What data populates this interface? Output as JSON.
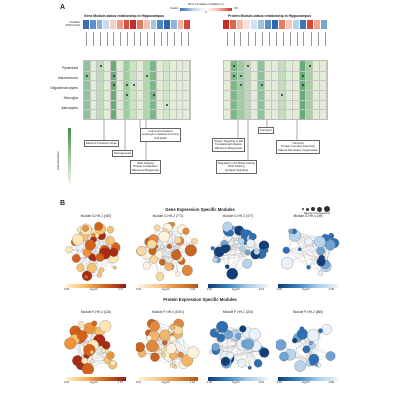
{
  "panel_a": {
    "letter": "A",
    "bicor_title": "Bicor Correlation Coefficient (r)",
    "bicor_min": "Control",
    "bicor_mid": "0",
    "bicor_max": "DS",
    "condition_label": "Condition (DS/Control)",
    "gene_title": "Gene Module-status relationship in Hippocampus",
    "protein_title": "Protein Module-status relationship in Hippocampus",
    "cell_types": [
      "Pyramidal",
      "Interneurons",
      "Oligodendrocytes",
      "Microglia",
      "Astrocytes"
    ],
    "y_axis_label": "Fold enrichment",
    "annotations": [
      {
        "lines": [
          "Electron Transport Chain"
        ]
      },
      {
        "lines": [
          "Neurogenesis"
        ]
      },
      {
        "lines": [
          "Cell communication",
          "Leukocyte mediated immunity",
          "Cell death"
        ]
      },
      {
        "lines": [
          "RNA Splicing",
          "Protein Localization",
          "Ribosome Biogenesis"
        ]
      },
      {
        "lines": [
          "Protein Targeting to ER",
          "Translational Initiation",
          "Ribosome Biogenesis"
        ]
      },
      {
        "lines": [
          "Regulation of GTPase Activity",
          "RNA Splicing",
          "Synaptic Signaling"
        ]
      },
      {
        "lines": [
          "Transport"
        ]
      },
      {
        "lines": [
          "Transport",
          "Protein Complex Assembly",
          "Plasma Membrane Organization"
        ]
      }
    ]
  },
  "panel_b": {
    "letter": "B",
    "gene_title": "Gene Expression Specific Modules",
    "protein_title": "Protein Expression Specific Modules",
    "degree_label": "Degree of connections",
    "axis_label": "log₂FC",
    "gene_modules": [
      {
        "name": "Module G-HH-1 (467)",
        "min": "0.66",
        "max": "3.72"
      },
      {
        "name": "Module G-HH-2 (771)",
        "min": "0.32",
        "max": "2.46"
      },
      {
        "name": "Module G-HH-3 (477)",
        "min": "-0.66",
        "max": "-0.19"
      },
      {
        "name": "Module G-HH-4 (49)",
        "min": "-0.96",
        "max": "-0.35"
      }
    ],
    "protein_modules": [
      {
        "name": "Module P-HH-3 (126)",
        "min": "0.22",
        "max": "1.87"
      },
      {
        "name": "Module P-HH-4 (1001)",
        "min": "0.21",
        "max": "1.10"
      },
      {
        "name": "Module P-HH-1 (234)",
        "min": "-1.36",
        "max": "-0.19"
      },
      {
        "name": "Module P-HH-2 (850)",
        "min": "-0.94",
        "max": "-0.85"
      }
    ]
  }
}
